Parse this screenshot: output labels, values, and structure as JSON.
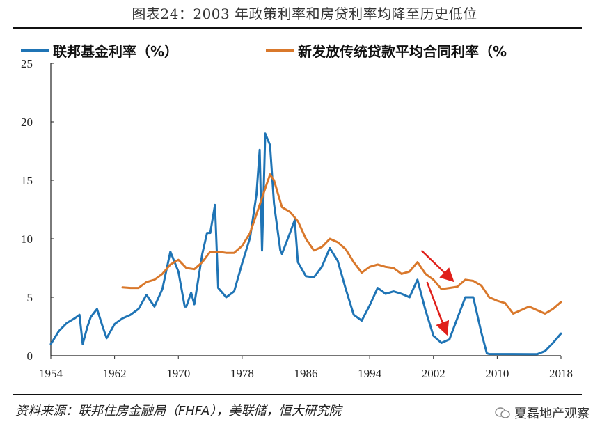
{
  "header": {
    "title": "图表24：2003 年政策利率和房贷利率均降至历史低位"
  },
  "footer": {
    "source": "资料来源：联邦住房金融局（FHFA），美联储，恒大研究院",
    "watermark": "夏磊地产观察"
  },
  "colors": {
    "fed": "#1f74b5",
    "mortgage": "#d9782b",
    "arrow": "#e0201b",
    "axis": "#222222"
  },
  "chart_data": {
    "type": "line",
    "xlim": [
      1954,
      2018
    ],
    "ylim": [
      0,
      25
    ],
    "x_ticks": [
      "1954",
      "1962",
      "1970",
      "1978",
      "1986",
      "1994",
      "2002",
      "2010",
      "2018"
    ],
    "y_ticks": [
      "0",
      "5",
      "10",
      "15",
      "20",
      "25"
    ],
    "series": [
      {
        "name": "联邦基金利率（%）",
        "color": "#1f74b5",
        "points": [
          [
            1954,
            1.0
          ],
          [
            1955,
            2.1
          ],
          [
            1956,
            2.8
          ],
          [
            1957,
            3.2
          ],
          [
            1957.6,
            3.5
          ],
          [
            1958,
            1.0
          ],
          [
            1958.6,
            2.5
          ],
          [
            1959,
            3.3
          ],
          [
            1959.8,
            4.0
          ],
          [
            1960.5,
            2.5
          ],
          [
            1961,
            1.5
          ],
          [
            1962,
            2.7
          ],
          [
            1963,
            3.2
          ],
          [
            1964,
            3.5
          ],
          [
            1965,
            4.0
          ],
          [
            1966,
            5.2
          ],
          [
            1967,
            4.2
          ],
          [
            1968,
            5.7
          ],
          [
            1969,
            8.9
          ],
          [
            1970,
            7.2
          ],
          [
            1970.8,
            4.2
          ],
          [
            1971,
            4.2
          ],
          [
            1971.6,
            5.4
          ],
          [
            1972,
            4.4
          ],
          [
            1973,
            8.7
          ],
          [
            1973.6,
            10.5
          ],
          [
            1974,
            10.5
          ],
          [
            1974.6,
            12.9
          ],
          [
            1975,
            5.8
          ],
          [
            1976,
            5.0
          ],
          [
            1977,
            5.5
          ],
          [
            1978,
            7.9
          ],
          [
            1979,
            10.1
          ],
          [
            1979.8,
            13.8
          ],
          [
            1980.2,
            17.6
          ],
          [
            1980.5,
            9.0
          ],
          [
            1980.9,
            19.0
          ],
          [
            1981.5,
            18.0
          ],
          [
            1982,
            13.0
          ],
          [
            1982.8,
            9.0
          ],
          [
            1983,
            8.7
          ],
          [
            1984,
            10.5
          ],
          [
            1984.6,
            11.6
          ],
          [
            1985,
            8.0
          ],
          [
            1986,
            6.8
          ],
          [
            1987,
            6.7
          ],
          [
            1988,
            7.6
          ],
          [
            1989,
            9.2
          ],
          [
            1990,
            8.1
          ],
          [
            1991,
            5.7
          ],
          [
            1992,
            3.5
          ],
          [
            1993,
            3.0
          ],
          [
            1994,
            4.3
          ],
          [
            1995,
            5.8
          ],
          [
            1996,
            5.3
          ],
          [
            1997,
            5.5
          ],
          [
            1998,
            5.3
          ],
          [
            1999,
            5.0
          ],
          [
            2000,
            6.5
          ],
          [
            2001,
            3.9
          ],
          [
            2002,
            1.7
          ],
          [
            2003,
            1.1
          ],
          [
            2004,
            1.4
          ],
          [
            2005,
            3.2
          ],
          [
            2006,
            5.0
          ],
          [
            2007,
            5.0
          ],
          [
            2008,
            2.0
          ],
          [
            2008.7,
            0.2
          ],
          [
            2009,
            0.15
          ],
          [
            2012,
            0.14
          ],
          [
            2015,
            0.13
          ],
          [
            2016,
            0.4
          ],
          [
            2017,
            1.1
          ],
          [
            2018,
            1.9
          ]
        ]
      },
      {
        "name": "新发放传统贷款平均合同利率（%",
        "color": "#d9782b",
        "points": [
          [
            1963,
            5.85
          ],
          [
            1964,
            5.8
          ],
          [
            1965,
            5.8
          ],
          [
            1966,
            6.3
          ],
          [
            1967,
            6.5
          ],
          [
            1968,
            7.0
          ],
          [
            1969,
            7.8
          ],
          [
            1970,
            8.2
          ],
          [
            1971,
            7.5
          ],
          [
            1972,
            7.4
          ],
          [
            1973,
            8.0
          ],
          [
            1974,
            8.9
          ],
          [
            1975,
            8.9
          ],
          [
            1976,
            8.8
          ],
          [
            1977,
            8.8
          ],
          [
            1978,
            9.4
          ],
          [
            1979,
            10.5
          ],
          [
            1980,
            12.5
          ],
          [
            1981,
            14.5
          ],
          [
            1981.5,
            15.5
          ],
          [
            1982,
            15.0
          ],
          [
            1983,
            12.7
          ],
          [
            1984,
            12.3
          ],
          [
            1985,
            11.5
          ],
          [
            1986,
            10.0
          ],
          [
            1987,
            9.0
          ],
          [
            1988,
            9.3
          ],
          [
            1989,
            10.0
          ],
          [
            1990,
            9.7
          ],
          [
            1991,
            9.1
          ],
          [
            1992,
            8.0
          ],
          [
            1993,
            7.1
          ],
          [
            1994,
            7.6
          ],
          [
            1995,
            7.8
          ],
          [
            1996,
            7.6
          ],
          [
            1997,
            7.5
          ],
          [
            1998,
            7.0
          ],
          [
            1999,
            7.2
          ],
          [
            2000,
            8.0
          ],
          [
            2001,
            7.0
          ],
          [
            2002,
            6.5
          ],
          [
            2003,
            5.7
          ],
          [
            2004,
            5.8
          ],
          [
            2005,
            5.9
          ],
          [
            2006,
            6.5
          ],
          [
            2007,
            6.4
          ],
          [
            2008,
            6.0
          ],
          [
            2009,
            5.0
          ],
          [
            2010,
            4.7
          ],
          [
            2011,
            4.5
          ],
          [
            2012,
            3.6
          ],
          [
            2013,
            3.9
          ],
          [
            2014,
            4.2
          ],
          [
            2015,
            3.9
          ],
          [
            2016,
            3.6
          ],
          [
            2017,
            4.0
          ],
          [
            2018,
            4.6
          ]
        ]
      }
    ],
    "annotations": [
      {
        "type": "arrow",
        "from": [
          2000.5,
          9.0
        ],
        "to": [
          2004.3,
          6.5
        ]
      },
      {
        "type": "arrow",
        "from": [
          2001.2,
          6.3
        ],
        "to": [
          2003.6,
          2.0
        ]
      }
    ]
  }
}
